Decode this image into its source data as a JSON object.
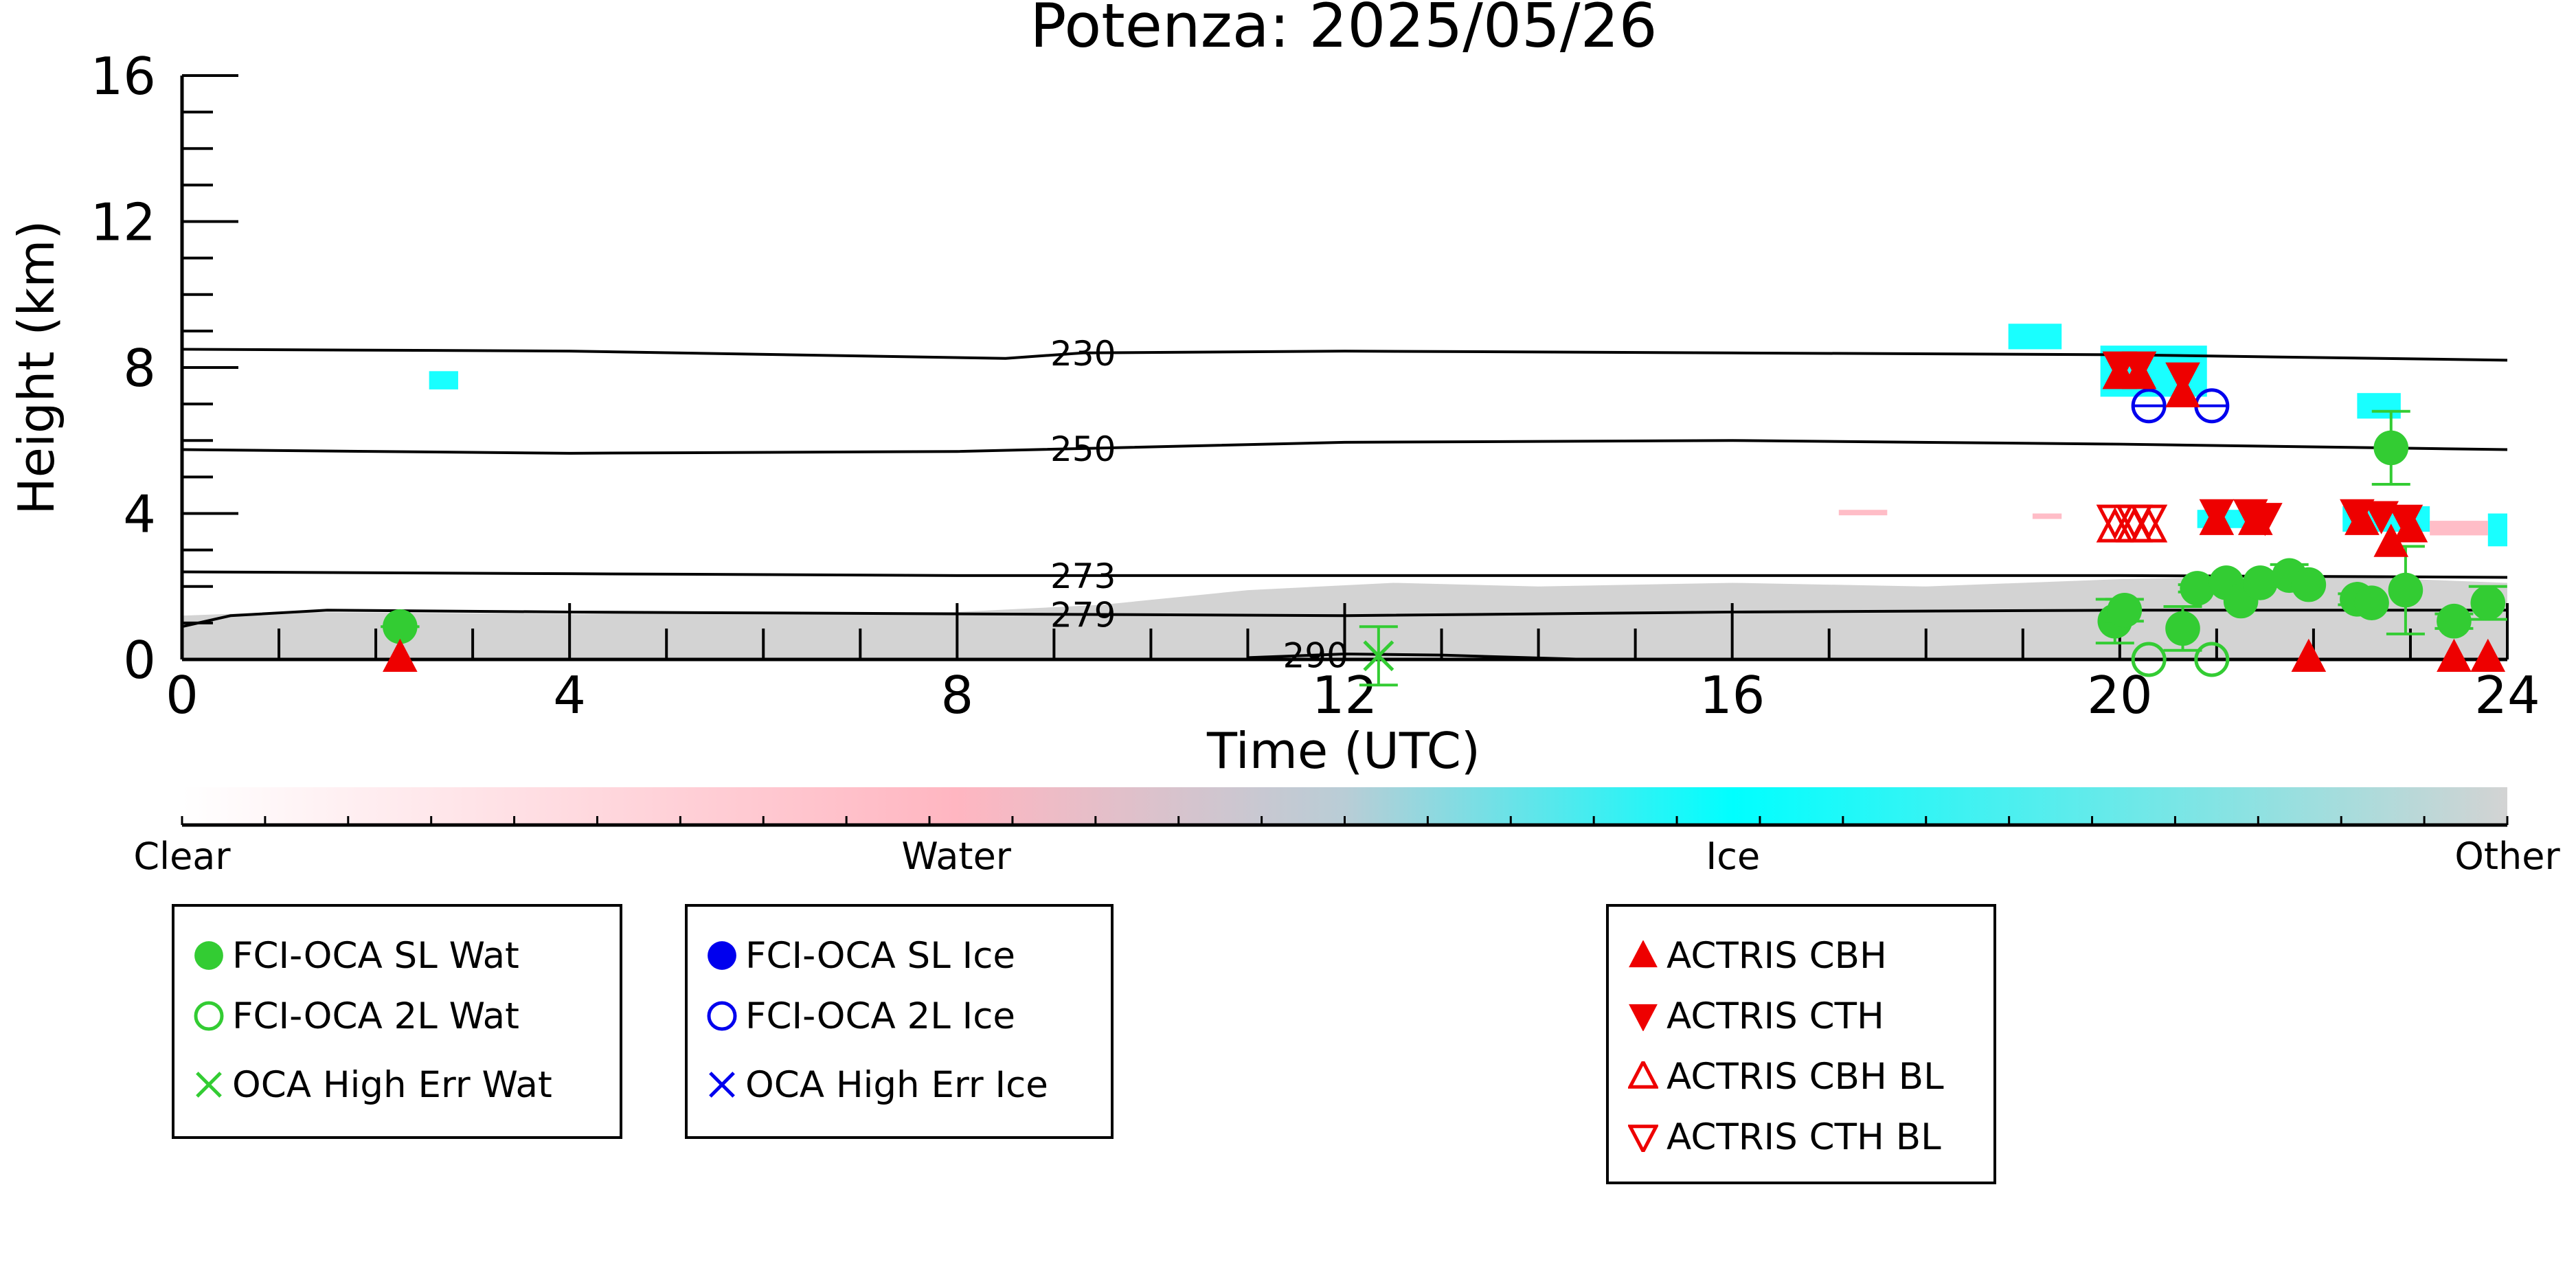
{
  "title": "Potenza: 2025/05/26",
  "chart_data": {
    "type": "scatter",
    "title": "Potenza: 2025/05/26",
    "xlabel": "Time (UTC)",
    "ylabel": "Height (km)",
    "xlim": [
      0,
      24
    ],
    "ylim": [
      0,
      16
    ],
    "x_ticks": [
      "0",
      "4",
      "8",
      "12",
      "16",
      "20",
      "24"
    ],
    "y_ticks": [
      "0",
      "4",
      "8",
      "12",
      "16"
    ],
    "isotherms": [
      {
        "label": "230",
        "points": [
          [
            0,
            8.5
          ],
          [
            4,
            8.45
          ],
          [
            8.5,
            8.25
          ],
          [
            9.3,
            8.4
          ],
          [
            12,
            8.45
          ],
          [
            16,
            8.4
          ],
          [
            20,
            8.35
          ],
          [
            24,
            8.2
          ]
        ]
      },
      {
        "label": "250",
        "points": [
          [
            0,
            5.75
          ],
          [
            4,
            5.65
          ],
          [
            8,
            5.7
          ],
          [
            12,
            5.95
          ],
          [
            16,
            6.0
          ],
          [
            20,
            5.9
          ],
          [
            24,
            5.75
          ]
        ]
      },
      {
        "label": "273",
        "points": [
          [
            0,
            2.4
          ],
          [
            4,
            2.35
          ],
          [
            8,
            2.3
          ],
          [
            12,
            2.3
          ],
          [
            16,
            2.3
          ],
          [
            20,
            2.3
          ],
          [
            24,
            2.25
          ]
        ]
      },
      {
        "label": "279",
        "points": [
          [
            0,
            0.9
          ],
          [
            0.5,
            1.2
          ],
          [
            1.5,
            1.35
          ],
          [
            4,
            1.3
          ],
          [
            8,
            1.25
          ],
          [
            12,
            1.2
          ],
          [
            16,
            1.3
          ],
          [
            20,
            1.35
          ],
          [
            24,
            1.35
          ]
        ]
      },
      {
        "label": "290",
        "points": [
          [
            11,
            0.05
          ],
          [
            12,
            0.15
          ],
          [
            13,
            0.12
          ],
          [
            14.5,
            0.0
          ]
        ]
      }
    ],
    "colorbar": {
      "labels": [
        "Clear",
        "Water",
        "Ice",
        "Other"
      ],
      "colors": [
        "#ffffff",
        "#ffb6c1",
        "#00ffff",
        "#d3d3d3"
      ]
    },
    "series": [
      {
        "name": "FCI-OCA SL Wat",
        "color": "#33cc33",
        "marker": "filled-circle",
        "points": [
          {
            "x": 2.25,
            "y": 0.9,
            "xerr": 0.2
          },
          {
            "x": 19.95,
            "y": 1.05,
            "yerr": 0.6
          },
          {
            "x": 20.05,
            "y": 1.35,
            "yerr": 0.3
          },
          {
            "x": 20.65,
            "y": 0.85,
            "yerr": 0.6
          },
          {
            "x": 20.8,
            "y": 1.95,
            "yerr": 0.1
          },
          {
            "x": 21.1,
            "y": 2.1
          },
          {
            "x": 21.25,
            "y": 1.6
          },
          {
            "x": 21.45,
            "y": 2.1
          },
          {
            "x": 21.75,
            "y": 2.3,
            "yerr": 0.3
          },
          {
            "x": 21.95,
            "y": 2.05
          },
          {
            "x": 22.45,
            "y": 1.65,
            "yerr": 0.15
          },
          {
            "x": 22.6,
            "y": 1.55
          },
          {
            "x": 22.8,
            "y": 5.8,
            "yerr": 1.0
          },
          {
            "x": 22.95,
            "y": 1.9,
            "yerr": 1.2
          },
          {
            "x": 23.45,
            "y": 1.05,
            "yerr": 0.2
          },
          {
            "x": 23.8,
            "y": 1.55,
            "yerr": 0.45
          }
        ]
      },
      {
        "name": "FCI-OCA 2L Wat",
        "color": "#33cc33",
        "marker": "open-circle",
        "points": [
          {
            "x": 20.3,
            "y": 0.0
          },
          {
            "x": 20.95,
            "y": 0.0
          }
        ]
      },
      {
        "name": "OCA High Err Wat",
        "color": "#33cc33",
        "marker": "x",
        "points": [
          {
            "x": 12.35,
            "y": 0.1,
            "yerr": 0.8
          }
        ]
      },
      {
        "name": "FCI-OCA SL Ice",
        "color": "#0000ee",
        "marker": "filled-circle",
        "points": []
      },
      {
        "name": "FCI-OCA 2L Ice",
        "color": "#0000ee",
        "marker": "open-circle",
        "points": [
          {
            "x": 20.3,
            "y": 6.95,
            "xerr": 0.15
          },
          {
            "x": 20.95,
            "y": 6.95,
            "xerr": 0.15
          }
        ]
      },
      {
        "name": "OCA High Err Ice",
        "color": "#0000ee",
        "marker": "x",
        "points": []
      },
      {
        "name": "ACTRIS CBH",
        "color": "#ee0000",
        "marker": "filled-triangle-up",
        "points": [
          {
            "x": 2.25,
            "y": 0.05
          },
          {
            "x": 20.0,
            "y": 7.8
          },
          {
            "x": 20.2,
            "y": 7.8
          },
          {
            "x": 20.65,
            "y": 7.3
          },
          {
            "x": 21.0,
            "y": 3.8
          },
          {
            "x": 21.4,
            "y": 3.8
          },
          {
            "x": 22.5,
            "y": 3.8
          },
          {
            "x": 22.8,
            "y": 3.2
          },
          {
            "x": 23.0,
            "y": 3.6
          },
          {
            "x": 21.95,
            "y": 0.05
          },
          {
            "x": 23.45,
            "y": 0.05
          },
          {
            "x": 23.8,
            "y": 0.05
          }
        ]
      },
      {
        "name": "ACTRIS CTH",
        "color": "#ee0000",
        "marker": "filled-triangle-down",
        "points": [
          {
            "x": 20.0,
            "y": 8.05
          },
          {
            "x": 20.2,
            "y": 8.05
          },
          {
            "x": 20.65,
            "y": 7.75
          },
          {
            "x": 21.0,
            "y": 4.0
          },
          {
            "x": 21.35,
            "y": 4.0
          },
          {
            "x": 21.5,
            "y": 3.9
          },
          {
            "x": 22.45,
            "y": 4.0
          },
          {
            "x": 22.7,
            "y": 3.95
          },
          {
            "x": 22.95,
            "y": 3.85
          }
        ]
      },
      {
        "name": "ACTRIS CBH BL",
        "color": "#ee0000",
        "marker": "open-triangle-up",
        "points": [
          {
            "x": 19.95,
            "y": 3.6
          },
          {
            "x": 20.15,
            "y": 3.6
          },
          {
            "x": 20.3,
            "y": 3.6
          }
        ]
      },
      {
        "name": "ACTRIS CTH BL",
        "color": "#ee0000",
        "marker": "open-triangle-down",
        "points": [
          {
            "x": 19.95,
            "y": 3.85
          },
          {
            "x": 20.15,
            "y": 3.85
          },
          {
            "x": 20.3,
            "y": 3.85
          }
        ]
      }
    ],
    "classification_patches": [
      {
        "class": "Ice",
        "x0": 2.55,
        "x1": 2.85,
        "y0": 7.4,
        "y1": 7.9
      },
      {
        "class": "Ice",
        "x0": 18.85,
        "x1": 19.4,
        "y0": 8.5,
        "y1": 9.2
      },
      {
        "class": "Ice",
        "x0": 19.8,
        "x1": 20.9,
        "y0": 7.2,
        "y1": 8.6
      },
      {
        "class": "Ice",
        "x0": 22.45,
        "x1": 22.9,
        "y0": 6.6,
        "y1": 7.3
      },
      {
        "class": "Ice",
        "x0": 20.8,
        "x1": 21.5,
        "y0": 3.6,
        "y1": 4.1
      },
      {
        "class": "Ice",
        "x0": 22.3,
        "x1": 23.2,
        "y0": 3.5,
        "y1": 4.2
      },
      {
        "class": "Ice",
        "x0": 23.8,
        "x1": 24.0,
        "y0": 3.1,
        "y1": 4.0
      },
      {
        "class": "Water",
        "x0": 17.1,
        "x1": 17.6,
        "y0": 3.95,
        "y1": 4.1
      },
      {
        "class": "Water",
        "x0": 19.1,
        "x1": 19.4,
        "y0": 3.85,
        "y1": 4.0
      },
      {
        "class": "Water",
        "x0": 23.2,
        "x1": 23.8,
        "y0": 3.4,
        "y1": 3.8
      }
    ]
  },
  "legends": [
    {
      "entries": [
        {
          "label": "FCI-OCA SL Wat",
          "marker": "filled-circle",
          "color": "#33cc33"
        },
        {
          "label": "FCI-OCA 2L Wat",
          "marker": "open-circle",
          "color": "#33cc33"
        },
        {
          "label": "OCA High Err Wat",
          "marker": "x",
          "color": "#33cc33"
        }
      ]
    },
    {
      "entries": [
        {
          "label": "FCI-OCA SL Ice",
          "marker": "filled-circle",
          "color": "#0000ee"
        },
        {
          "label": "FCI-OCA 2L Ice",
          "marker": "open-circle",
          "color": "#0000ee"
        },
        {
          "label": "OCA High Err Ice",
          "marker": "x",
          "color": "#0000ee"
        }
      ]
    },
    {
      "entries": [
        {
          "label": "ACTRIS CBH",
          "marker": "filled-triangle-up",
          "color": "#ee0000"
        },
        {
          "label": "ACTRIS CTH",
          "marker": "filled-triangle-down",
          "color": "#ee0000"
        },
        {
          "label": "ACTRIS CBH BL",
          "marker": "open-triangle-up",
          "color": "#ee0000"
        },
        {
          "label": "ACTRIS CTH BL",
          "marker": "open-triangle-down",
          "color": "#ee0000"
        }
      ]
    }
  ]
}
